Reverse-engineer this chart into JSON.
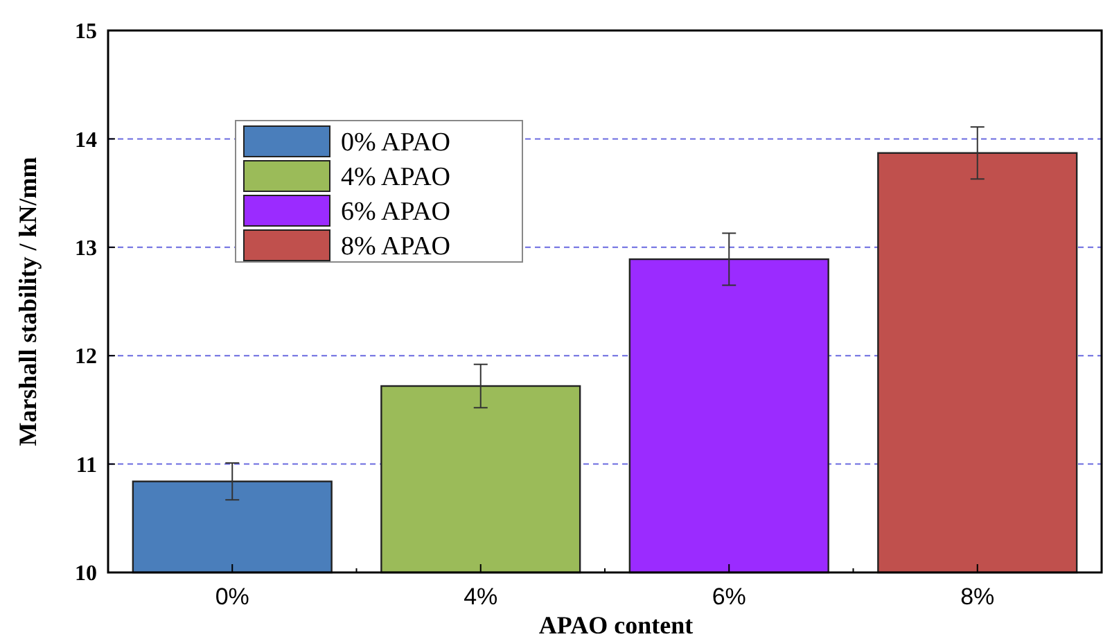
{
  "chart_data": {
    "type": "bar",
    "xlabel": "APAO content",
    "ylabel": "Marshall stability / kN/mm",
    "categories": [
      "0%",
      "4%",
      "6%",
      "8%"
    ],
    "series": [
      {
        "name": "0% APAO",
        "color": "#4a7ebb",
        "values": [
          10.84,
          null,
          null,
          null
        ],
        "errors": [
          0.17,
          null,
          null,
          null
        ]
      },
      {
        "name": "4% APAO",
        "color": "#9bbb59",
        "values": [
          null,
          11.72,
          null,
          null
        ],
        "errors": [
          null,
          0.2,
          null,
          null
        ]
      },
      {
        "name": "6% APAO",
        "color": "#9b2bff",
        "values": [
          null,
          null,
          12.89,
          null
        ],
        "errors": [
          null,
          null,
          0.24,
          null
        ]
      },
      {
        "name": "8% APAO",
        "color": "#c0504d",
        "values": [
          null,
          null,
          null,
          13.87
        ],
        "errors": [
          null,
          null,
          null,
          0.24
        ]
      }
    ],
    "ylim": [
      10,
      15
    ],
    "yticks": [
      10,
      11,
      12,
      13,
      14,
      15
    ],
    "grid": "y",
    "legend": "top left"
  }
}
